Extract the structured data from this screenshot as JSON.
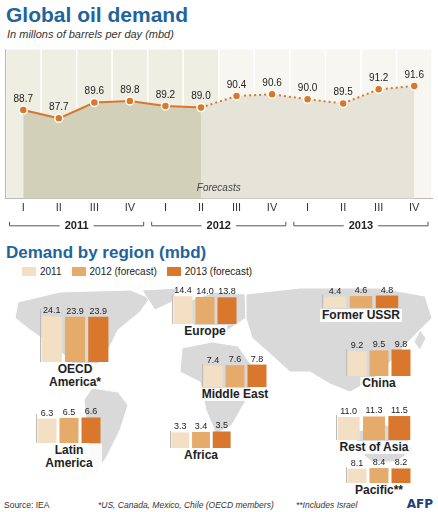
{
  "chart_data": [
    {
      "type": "line",
      "title": "Global oil demand",
      "subtitle": "In millons of barrels per day (mbd)",
      "categories": [
        "I",
        "II",
        "III",
        "IV",
        "I",
        "II",
        "III",
        "IV",
        "I",
        "II",
        "III",
        "IV"
      ],
      "x_groups": [
        "2011",
        "2012",
        "2013"
      ],
      "series": [
        {
          "color": "#d9782d",
          "line_style": "solid",
          "marker": "circle",
          "values": [
            88.7,
            87.7,
            89.6,
            89.8,
            89.2,
            89.0,
            null,
            null,
            null,
            null,
            null,
            null
          ],
          "value_labels": [
            "88.7",
            "87.7",
            "89.6",
            "89.8",
            "89.2",
            "89.0",
            null,
            null,
            null,
            null,
            null,
            null
          ]
        },
        {
          "name": "Forecasts",
          "color": "#d9782d",
          "line_style": "dotted",
          "marker": "circle",
          "values": [
            null,
            null,
            null,
            null,
            null,
            null,
            90.4,
            90.6,
            90.0,
            89.5,
            91.2,
            91.6
          ],
          "value_labels": [
            null,
            null,
            null,
            null,
            null,
            null,
            "90.4",
            "90.6",
            "90.0",
            "89.5",
            "91.2",
            "91.6"
          ]
        }
      ],
      "ylim": [
        78,
        96
      ],
      "yticks": [],
      "grid": false,
      "data_labels": true,
      "tick_labels": "x"
    },
    {
      "type": "bar",
      "title": "OECD America*",
      "categories": [
        "2011",
        "2012 (forecast)",
        "2013 (forecast)"
      ],
      "values": [
        24.1,
        23.9,
        23.9
      ],
      "value_labels": [
        "24.1",
        "23.9",
        "23.9"
      ],
      "colors": [
        "#f2dfc4",
        "#e5ab6b",
        "#d9782d"
      ],
      "ylim": [
        0,
        28
      ],
      "yticks": [],
      "grid": false,
      "data_labels": true,
      "tick_labels": false
    },
    {
      "type": "bar",
      "title": "Latin America",
      "categories": [
        "2011",
        "2012 (forecast)",
        "2013 (forecast)"
      ],
      "values": [
        6.3,
        6.5,
        6.6
      ],
      "value_labels": [
        "6.3",
        "6.5",
        "6.6"
      ],
      "colors": [
        "#f2dfc4",
        "#e5ab6b",
        "#d9782d"
      ],
      "ylim": [
        0,
        7.5
      ],
      "yticks": [],
      "grid": false,
      "data_labels": true,
      "tick_labels": false
    },
    {
      "type": "bar",
      "title": "Europe",
      "categories": [
        "2011",
        "2012 (forecast)",
        "2013 (forecast)"
      ],
      "values": [
        14.4,
        14.0,
        13.8
      ],
      "value_labels": [
        "14.4",
        "14.0",
        "13.8"
      ],
      "colors": [
        "#f2dfc4",
        "#e5ab6b",
        "#d9782d"
      ],
      "ylim": [
        0,
        15
      ],
      "yticks": [],
      "grid": false,
      "data_labels": true,
      "tick_labels": false
    },
    {
      "type": "bar",
      "title": "Africa",
      "categories": [
        "2011",
        "2012 (forecast)",
        "2013 (forecast)"
      ],
      "values": [
        3.3,
        3.4,
        3.5
      ],
      "value_labels": [
        "3.3",
        "3.4",
        "3.5"
      ],
      "colors": [
        "#f2dfc4",
        "#e5ab6b",
        "#d9782d"
      ],
      "ylim": [
        0,
        3.6
      ],
      "yticks": [],
      "grid": false,
      "data_labels": true,
      "tick_labels": false
    },
    {
      "type": "bar",
      "title": "Middle East",
      "categories": [
        "2011",
        "2012 (forecast)",
        "2013 (forecast)"
      ],
      "values": [
        7.4,
        7.6,
        7.8
      ],
      "value_labels": [
        "7.4",
        "7.6",
        "7.8"
      ],
      "colors": [
        "#f2dfc4",
        "#e5ab6b",
        "#d9782d"
      ],
      "ylim": [
        0,
        8
      ],
      "yticks": [],
      "grid": false,
      "data_labels": true,
      "tick_labels": false
    },
    {
      "type": "bar",
      "title": "Former USSR",
      "categories": [
        "2011",
        "2012 (forecast)",
        "2013 (forecast)"
      ],
      "values": [
        4.4,
        4.6,
        4.8
      ],
      "value_labels": [
        "4.4",
        "4.6",
        "4.8"
      ],
      "colors": [
        "#f2dfc4",
        "#e5ab6b",
        "#d9782d"
      ],
      "ylim": [
        0,
        5
      ],
      "yticks": [],
      "grid": false,
      "data_labels": true,
      "tick_labels": false
    },
    {
      "type": "bar",
      "title": "China",
      "categories": [
        "2011",
        "2012 (forecast)",
        "2013 (forecast)"
      ],
      "values": [
        9.2,
        9.5,
        9.8
      ],
      "value_labels": [
        "9.2",
        "9.5",
        "9.8"
      ],
      "colors": [
        "#f2dfc4",
        "#e5ab6b",
        "#d9782d"
      ],
      "ylim": [
        0,
        10
      ],
      "yticks": [],
      "grid": false,
      "data_labels": true,
      "tick_labels": false
    },
    {
      "type": "bar",
      "title": "Rest of Asia",
      "categories": [
        "2011",
        "2012 (forecast)",
        "2013 (forecast)"
      ],
      "values": [
        11.0,
        11.3,
        11.5
      ],
      "value_labels": [
        "11.0",
        "11.3",
        "11.5"
      ],
      "colors": [
        "#f2dfc4",
        "#e5ab6b",
        "#d9782d"
      ],
      "ylim": [
        0,
        12
      ],
      "yticks": [],
      "grid": false,
      "data_labels": true,
      "tick_labels": false
    },
    {
      "type": "bar",
      "title": "Pacific**",
      "categories": [
        "2011",
        "2012 (forecast)",
        "2013 (forecast)"
      ],
      "values": [
        8.1,
        8.4,
        8.2
      ],
      "value_labels": [
        "8.1",
        "8.4",
        "8.2"
      ],
      "colors": [
        "#f2dfc4",
        "#e5ab6b",
        "#d9782d"
      ],
      "ylim": [
        0,
        9
      ],
      "yticks": [],
      "grid": false,
      "data_labels": true,
      "tick_labels": false
    }
  ],
  "section_title": "Demand by region (mbd)",
  "footer": {
    "source": "Source: IEA",
    "notes": [
      "*US, Canada, Mexico, Chile (OECD members)",
      "**Includes Israel"
    ],
    "credit": "AFP"
  }
}
